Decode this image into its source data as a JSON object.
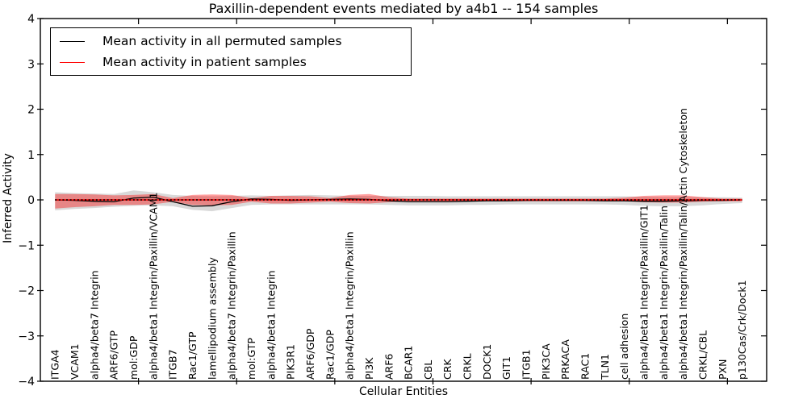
{
  "title": "Paxillin-dependent events mediated by a4b1 -- 154 samples",
  "legend": {
    "position": "upper left",
    "items": [
      {
        "label": "Mean activity in all permuted samples",
        "color": "#000000"
      },
      {
        "label": "Mean activity in patient samples",
        "color": "#ff0000"
      }
    ]
  },
  "chart_data": {
    "type": "line",
    "title": "Paxillin-dependent events mediated by a4b1 -- 154 samples",
    "xlabel": "Cellular Entities",
    "ylabel": "Inferred Activity",
    "ylim": [
      -4,
      4
    ],
    "y_ticks": [
      4,
      3,
      2,
      1,
      0,
      -1,
      -2,
      -3,
      -4
    ],
    "y_tick_labels": [
      "4",
      "3",
      "2",
      "1",
      "0",
      "−1",
      "−2",
      "−3",
      "−4"
    ],
    "xlim": [
      0,
      37
    ],
    "x_tick_step": 5,
    "x_data_offset": 0.75,
    "grid": false,
    "categories": [
      "ITGA4",
      "VCAM1",
      "alpha4/beta7 Integrin",
      "ARF6/GTP",
      "mol:GDP",
      "alpha4/beta1 Integrin/Paxillin/VCAM1",
      "ITGB7",
      "Rac1/GTP",
      "lamellipodium assembly",
      "alpha4/beta7 Integrin/Paxillin",
      "mol:GTP",
      "alpha4/beta1 Integrin",
      "PIK3R1",
      "ARF6/GDP",
      "Rac1/GDP",
      "alpha4/beta1 Integrin/Paxillin",
      "PI3K",
      "ARF6",
      "BCAR1",
      "CBL",
      "CRK",
      "CRKL",
      "DOCK1",
      "GIT1",
      "ITGB1",
      "PIK3CA",
      "PRKACA",
      "RAC1",
      "TLN1",
      "cell adhesion",
      "alpha4/beta1 Integrin/Paxillin/GIT1",
      "alpha4/beta1 Integrin/Paxillin/Talin",
      "alpha4/beta1 Integrin/Paxillin/Talin/Actin Cytoskeleton",
      "CRKL/CBL",
      "PXN",
      "p130Cas/Crk/Dock1"
    ],
    "series": [
      {
        "name": "Mean activity in all permuted samples",
        "color": "#000000",
        "line_width": 1.3,
        "values": [
          0.0,
          -0.01,
          -0.03,
          -0.04,
          0.04,
          0.06,
          -0.04,
          -0.14,
          -0.13,
          -0.04,
          0.02,
          0.01,
          -0.01,
          0.0,
          0.01,
          0.02,
          0.01,
          -0.02,
          -0.04,
          -0.04,
          -0.04,
          -0.03,
          -0.02,
          -0.02,
          -0.01,
          -0.01,
          -0.01,
          -0.01,
          -0.02,
          -0.02,
          -0.03,
          -0.03,
          -0.02,
          -0.01,
          -0.01,
          0.0
        ],
        "band_upper": [
          0.17,
          0.15,
          0.14,
          0.13,
          0.21,
          0.17,
          0.11,
          0.09,
          0.08,
          0.09,
          0.1,
          0.09,
          0.1,
          0.11,
          0.1,
          0.09,
          0.09,
          0.09,
          0.09,
          0.09,
          0.08,
          0.08,
          0.08,
          0.08,
          0.08,
          0.08,
          0.08,
          0.08,
          0.08,
          0.08,
          0.07,
          0.06,
          0.06,
          0.06,
          0.06,
          0.05
        ],
        "band_lower": [
          -0.23,
          -0.2,
          -0.18,
          -0.15,
          -0.13,
          -0.12,
          -0.14,
          -0.22,
          -0.25,
          -0.18,
          -0.11,
          -0.1,
          -0.1,
          -0.1,
          -0.1,
          -0.1,
          -0.1,
          -0.11,
          -0.12,
          -0.12,
          -0.12,
          -0.11,
          -0.11,
          -0.1,
          -0.1,
          -0.1,
          -0.1,
          -0.1,
          -0.1,
          -0.11,
          -0.13,
          -0.14,
          -0.14,
          -0.12,
          -0.09,
          -0.07
        ],
        "band_color": "rgba(0,0,0,0.15)"
      },
      {
        "name": "Mean activity in patient samples",
        "color": "#ff0000",
        "line_width": 1.6,
        "values": [
          0,
          0,
          0,
          0,
          0,
          0,
          0,
          0,
          0,
          0,
          0,
          0,
          0,
          0,
          0,
          0,
          0,
          0,
          0,
          0,
          0,
          0,
          0,
          0,
          0,
          0,
          0,
          0,
          0,
          0,
          0,
          0,
          0,
          0,
          0,
          0
        ],
        "band_upper": [
          0.13,
          0.13,
          0.12,
          0.1,
          0.11,
          0.13,
          0.04,
          0.11,
          0.12,
          0.11,
          0.04,
          0.09,
          0.09,
          0.08,
          0.04,
          0.11,
          0.13,
          0.06,
          0.03,
          0.03,
          0.03,
          0.03,
          0.03,
          0.03,
          0.03,
          0.03,
          0.03,
          0.03,
          0.03,
          0.05,
          0.09,
          0.1,
          0.1,
          0.06,
          0.03,
          0.03
        ],
        "band_lower": [
          -0.19,
          -0.16,
          -0.14,
          -0.11,
          -0.11,
          -0.1,
          -0.04,
          -0.11,
          -0.12,
          -0.11,
          -0.04,
          -0.08,
          -0.08,
          -0.06,
          -0.04,
          -0.07,
          -0.08,
          -0.05,
          -0.03,
          -0.03,
          -0.03,
          -0.03,
          -0.03,
          -0.03,
          -0.03,
          -0.03,
          -0.03,
          -0.03,
          -0.03,
          -0.03,
          -0.05,
          -0.06,
          -0.06,
          -0.04,
          -0.03,
          -0.03
        ],
        "band_color": "rgba(255,0,0,0.38)"
      }
    ],
    "zero_line": {
      "y": 0,
      "style": "dotted",
      "color": "#000000"
    }
  }
}
